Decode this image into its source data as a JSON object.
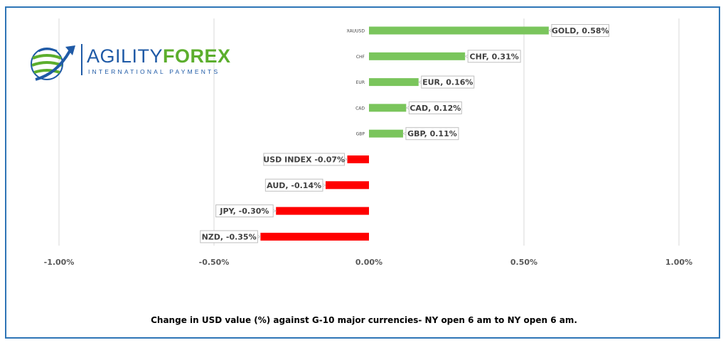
{
  "brand": {
    "name_part1": "AGILITY",
    "name_part2": "FOREX",
    "tagline": "INTERNATIONAL PAYMENTS"
  },
  "caption": "Change in  USD value (%)  against  G-10 major currencies- NY open 6 am to NY open 6 am.",
  "colors": {
    "positive": "#7ac55c",
    "negative": "#ff0000",
    "border": "#2e75b6",
    "grid": "#d9d9d9"
  },
  "chart_data": {
    "type": "bar",
    "orientation": "horizontal",
    "xlim": [
      -0.01,
      0.01
    ],
    "ticks": [
      -0.01,
      -0.005,
      0,
      0.005,
      0.01
    ],
    "tick_labels": [
      "-1.00%",
      "-0.50%",
      "0.00%",
      "0.50%",
      "1.00%"
    ],
    "grid": true,
    "categories": [
      "XAUUSD",
      "CHF",
      "EUR",
      "CAD",
      "GBP",
      "",
      "",
      "",
      ""
    ],
    "values": [
      0.0058,
      0.0031,
      0.0016,
      0.0012,
      0.0011,
      -0.0007,
      -0.0014,
      -0.003,
      -0.0035
    ],
    "data_labels": [
      "GOLD, 0.58%",
      "CHF, 0.31%",
      "EUR, 0.16%",
      "CAD, 0.12%",
      "GBP, 0.11%",
      "USD INDEX -0.07%",
      "AUD, -0.14%",
      "JPY, -0.30%",
      "NZD, -0.35%"
    ]
  }
}
